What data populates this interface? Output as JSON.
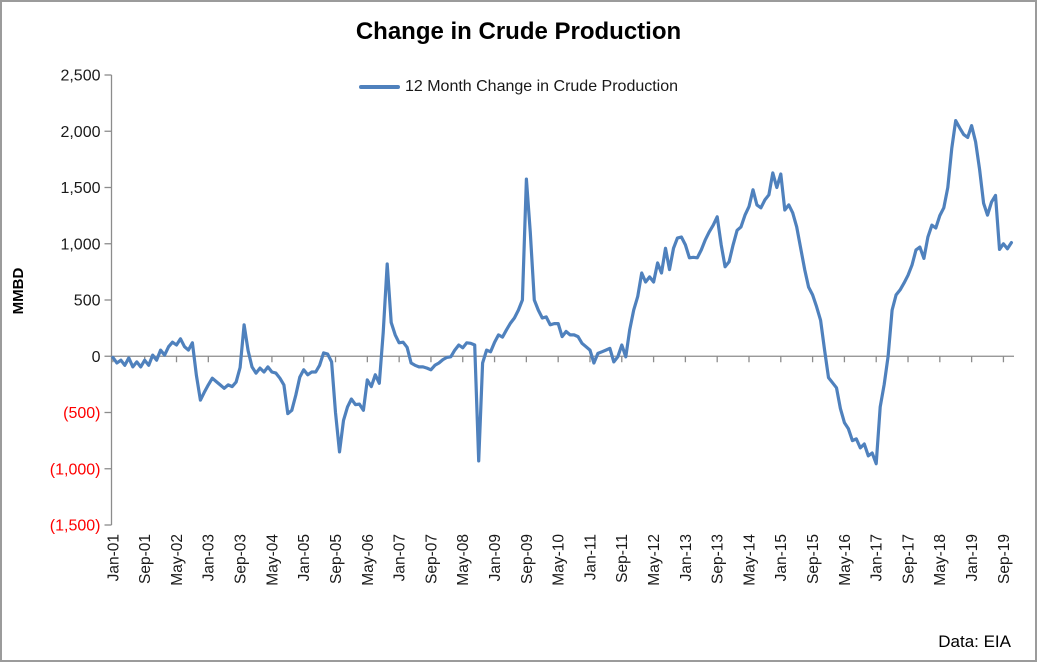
{
  "chart_data": {
    "type": "line",
    "title": "Change in Crude Production",
    "ylabel": "MMBD",
    "source_note": "Data: EIA",
    "legend_position": "top-center",
    "grid": "zero-line-only",
    "ylim": [
      -1500,
      2500
    ],
    "y_tick_interval": 500,
    "y_ticks": [
      {
        "value": 2500,
        "label": "2,500",
        "negative": false
      },
      {
        "value": 2000,
        "label": "2,000",
        "negative": false
      },
      {
        "value": 1500,
        "label": "1,500",
        "negative": false
      },
      {
        "value": 1000,
        "label": "1,000",
        "negative": false
      },
      {
        "value": 500,
        "label": "500",
        "negative": false
      },
      {
        "value": 0,
        "label": "0",
        "negative": false
      },
      {
        "value": -500,
        "label": "(500)",
        "negative": true
      },
      {
        "value": -1000,
        "label": "(1,000)",
        "negative": true
      },
      {
        "value": -1500,
        "label": "(1,500)",
        "negative": true
      }
    ],
    "negative_label_color": "#FF0000",
    "axis_color": "#8c8c8c",
    "x_start": "Jan-2001",
    "x_end": "Nov-2019",
    "x_frequency": "monthly",
    "x_tick_step_months": 8,
    "x_tick_labels": [
      "Jan-01",
      "Sep-01",
      "May-02",
      "Jan-03",
      "Sep-03",
      "May-04",
      "Jan-05",
      "Sep-05",
      "May-06",
      "Jan-07",
      "Sep-07",
      "May-08",
      "Jan-09",
      "Sep-09",
      "May-10",
      "Jan-11",
      "Sep-11",
      "May-12",
      "Jan-13",
      "Sep-13",
      "May-14",
      "Jan-15",
      "Sep-15",
      "May-16",
      "Jan-17",
      "Sep-17",
      "May-18",
      "Jan-19",
      "Sep-19"
    ],
    "series": [
      {
        "name": "12 Month Change in Crude Production",
        "color": "#4F81BD",
        "line_width": 3.2,
        "values": [
          -10,
          -60,
          -35,
          -80,
          -15,
          -95,
          -50,
          -95,
          -35,
          -80,
          10,
          -35,
          55,
          10,
          85,
          125,
          100,
          155,
          85,
          55,
          120,
          -170,
          -390,
          -320,
          -255,
          -195,
          -225,
          -255,
          -285,
          -255,
          -270,
          -230,
          -100,
          280,
          50,
          -95,
          -150,
          -105,
          -140,
          -95,
          -140,
          -150,
          -195,
          -255,
          -510,
          -480,
          -345,
          -185,
          -120,
          -165,
          -140,
          -140,
          -80,
          30,
          20,
          -50,
          -500,
          -850,
          -570,
          -450,
          -380,
          -430,
          -425,
          -480,
          -210,
          -270,
          -165,
          -240,
          210,
          820,
          300,
          190,
          120,
          125,
          80,
          -60,
          -80,
          -95,
          -95,
          -105,
          -120,
          -80,
          -60,
          -30,
          -10,
          -5,
          55,
          100,
          75,
          120,
          115,
          100,
          -930,
          -60,
          55,
          40,
          125,
          190,
          170,
          235,
          295,
          340,
          410,
          500,
          1575,
          1100,
          500,
          410,
          340,
          350,
          280,
          290,
          290,
          175,
          220,
          190,
          190,
          175,
          115,
          85,
          55,
          -60,
          25,
          40,
          55,
          70,
          -50,
          -5,
          100,
          -5,
          235,
          410,
          530,
          740,
          660,
          705,
          660,
          830,
          740,
          960,
          770,
          960,
          1050,
          1060,
          990,
          875,
          880,
          875,
          945,
          1035,
          1105,
          1165,
          1240,
          990,
          795,
          840,
          990,
          1120,
          1150,
          1255,
          1330,
          1480,
          1345,
          1320,
          1390,
          1435,
          1630,
          1500,
          1620,
          1300,
          1345,
          1275,
          1150,
          960,
          770,
          615,
          545,
          440,
          320,
          60,
          -190,
          -235,
          -280,
          -465,
          -590,
          -645,
          -750,
          -735,
          -815,
          -780,
          -885,
          -860,
          -955,
          -450,
          -250,
          0,
          410,
          545,
          590,
          650,
          720,
          810,
          945,
          970,
          870,
          1060,
          1165,
          1140,
          1250,
          1320,
          1500,
          1850,
          2095,
          2030,
          1970,
          1945,
          2050,
          1905,
          1660,
          1360,
          1255,
          1370,
          1430,
          950,
          1000,
          955,
          1010
        ]
      }
    ]
  }
}
